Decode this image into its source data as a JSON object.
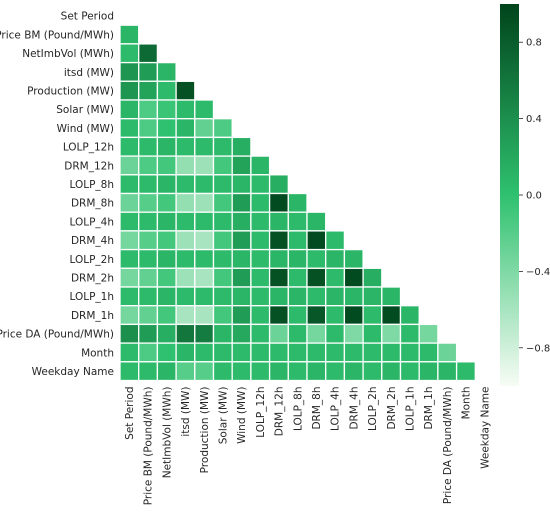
{
  "chart_data": {
    "type": "heatmap",
    "title": "",
    "variables": [
      "Set Period",
      "Price BM (Pound/MWh)",
      "NetImbVol (MWh)",
      "itsd (MW)",
      "Production (MW)",
      "Solar (MW)",
      "Wind (MW)",
      "LOLP_12h",
      "DRM_12h",
      "LOLP_8h",
      "DRM_8h",
      "LOLP_4h",
      "DRM_4h",
      "LOLP_2h",
      "DRM_2h",
      "LOLP_1h",
      "DRM_1h",
      "Price DA (Pound/MWh)",
      "Month",
      "Weekday Name"
    ],
    "mask": "upper triangle including diagonal",
    "values": [
      [],
      [
        0.1
      ],
      [
        0.05,
        0.7
      ],
      [
        0.35,
        0.3,
        0.1
      ],
      [
        0.35,
        0.25,
        0.05,
        0.9
      ],
      [
        0.1,
        -0.15,
        -0.05,
        0.05,
        0.05
      ],
      [
        0.05,
        -0.15,
        0.0,
        0.1,
        -0.25,
        -0.15
      ],
      [
        0.05,
        0.05,
        0.1,
        0.05,
        0.05,
        0.05,
        0.15
      ],
      [
        -0.3,
        -0.15,
        -0.1,
        -0.5,
        -0.55,
        -0.1,
        0.25,
        0.1
      ],
      [
        0.05,
        0.05,
        0.1,
        0.05,
        0.05,
        0.05,
        0.1,
        0.05,
        0.15
      ],
      [
        -0.3,
        -0.2,
        -0.1,
        -0.5,
        -0.55,
        -0.1,
        0.3,
        0.05,
        0.95,
        0.1
      ],
      [
        0.05,
        0.05,
        0.1,
        0.05,
        0.05,
        0.05,
        0.15,
        0.05,
        0.1,
        0.05,
        0.1
      ],
      [
        -0.35,
        -0.2,
        -0.1,
        -0.55,
        -0.6,
        -0.1,
        0.3,
        0.05,
        0.9,
        0.05,
        0.95,
        0.05
      ],
      [
        0.05,
        0.05,
        0.1,
        0.05,
        0.05,
        0.05,
        0.1,
        0.05,
        0.1,
        0.1,
        0.05,
        0.1,
        0.1
      ],
      [
        -0.35,
        -0.25,
        -0.1,
        -0.55,
        -0.6,
        -0.1,
        0.3,
        0.05,
        0.9,
        0.05,
        0.9,
        0.05,
        0.95,
        0.15
      ],
      [
        0.05,
        0.05,
        0.1,
        0.05,
        0.05,
        0.05,
        0.1,
        0.05,
        0.1,
        0.1,
        0.05,
        0.1,
        0.1,
        0.1,
        0.1
      ],
      [
        -0.35,
        -0.25,
        -0.1,
        -0.6,
        -0.6,
        -0.1,
        0.3,
        0.05,
        0.9,
        0.05,
        0.85,
        0.05,
        0.95,
        0.05,
        0.95,
        0.1
      ],
      [
        0.4,
        0.3,
        0.15,
        0.6,
        0.55,
        0.1,
        0.2,
        0.05,
        -0.3,
        0.05,
        -0.35,
        0.05,
        -0.4,
        0.05,
        -0.4,
        0.05,
        -0.35
      ],
      [
        0.05,
        -0.15,
        0.0,
        0.1,
        0.05,
        0.05,
        0.05,
        0.05,
        0.05,
        0.05,
        0.05,
        0.05,
        0.05,
        0.05,
        0.05,
        0.05,
        0.05,
        -0.3
      ],
      [
        0.05,
        0.05,
        0.1,
        -0.2,
        -0.2,
        0.05,
        0.05,
        0.05,
        0.1,
        0.05,
        0.1,
        0.05,
        0.1,
        0.05,
        0.1,
        0.05,
        0.1,
        0.1,
        0.05
      ]
    ],
    "colorbar": {
      "range": [
        -1,
        1
      ],
      "ticks": [
        {
          "value": 0.8,
          "label": "0.8"
        },
        {
          "value": 0.4,
          "label": "0.4"
        },
        {
          "value": 0.0,
          "label": "0.0"
        },
        {
          "value": -0.4,
          "label": "−0.4"
        },
        {
          "value": -0.8,
          "label": "−0.8"
        }
      ],
      "colormap": "Greens",
      "colors": [
        "#f7fcf5",
        "#2fc16f",
        "#00441b"
      ]
    },
    "grid": false,
    "cell_border_color": "#ffffff"
  }
}
